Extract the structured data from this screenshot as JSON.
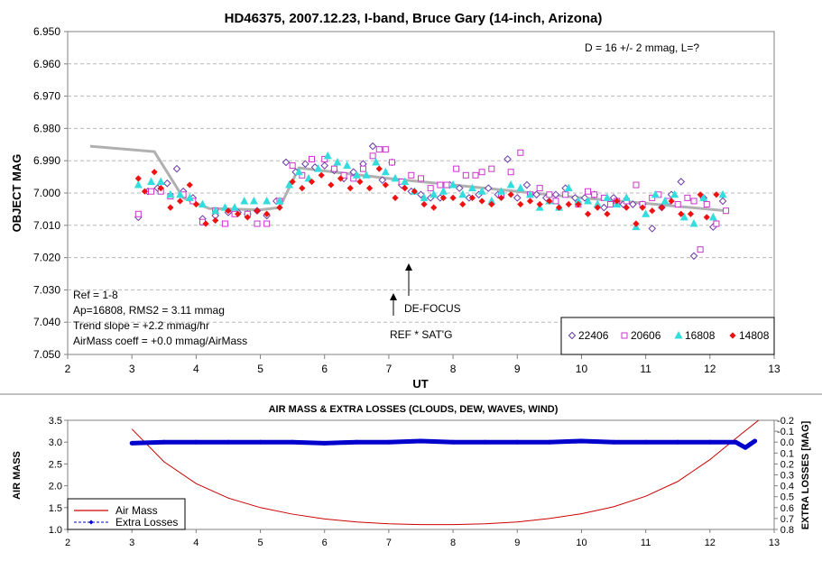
{
  "chart_data": [
    {
      "type": "scatter",
      "title": "HD46375, 2007.12.23, I-band, Bruce Gary (14-inch, Arizona)",
      "xlabel": "UT",
      "ylabel": "OBJECT MAG",
      "xlim": [
        2,
        13
      ],
      "ylim": [
        6.95,
        7.05
      ],
      "y_inverted": true,
      "x_ticks": [
        "2",
        "3",
        "4",
        "5",
        "6",
        "7",
        "8",
        "9",
        "10",
        "11",
        "12",
        "13"
      ],
      "y_ticks": [
        "6.950",
        "6.960",
        "6.970",
        "6.980",
        "6.990",
        "7.000",
        "7.010",
        "7.020",
        "7.030",
        "7.040",
        "7.050"
      ],
      "grid": "horizontal dashed",
      "legend": "bottom-right",
      "annotations": {
        "top_right": "D = 16 +/- 2 mmag, L=?",
        "stats": [
          "Ref = 1-8",
          "Ap=16808, RMS2 = 3.11 mmag",
          "Trend slope = +2.2 mmag/hr",
          "AirMass coeff = +0.0 mmag/AirMass"
        ],
        "defocus": "DE-FOCUS",
        "ref_sat": "REF * SAT'G"
      },
      "model_line": {
        "color": "#b0b0b0",
        "x": [
          2.35,
          3.35,
          3.8,
          4.2,
          5.0,
          5.3,
          5.6,
          7.0,
          8.0,
          9.0,
          10.0,
          11.0,
          12.25
        ],
        "y": [
          6.9855,
          6.9872,
          7.0015,
          7.0048,
          7.0052,
          7.0045,
          6.9922,
          6.9955,
          6.9975,
          6.9995,
          7.0015,
          7.0032,
          7.0055
        ]
      },
      "series": [
        {
          "name": "22406",
          "color": "#6a3aa8",
          "marker": "diamond-open",
          "x": [
            3.1,
            3.25,
            3.4,
            3.55,
            3.7,
            3.8,
            3.95,
            4.1,
            4.3,
            4.5,
            4.65,
            4.8,
            4.95,
            5.1,
            5.25,
            5.4,
            5.55,
            5.7,
            5.85,
            6.0,
            6.15,
            6.3,
            6.45,
            6.6,
            6.75,
            6.9,
            7.05,
            7.2,
            7.35,
            7.5,
            7.65,
            7.8,
            7.95,
            8.1,
            8.25,
            8.4,
            8.55,
            8.7,
            8.85,
            9.0,
            9.15,
            9.3,
            9.45,
            9.6,
            9.75,
            9.9,
            10.05,
            10.2,
            10.35,
            10.5,
            10.65,
            10.8,
            10.95,
            11.1,
            11.25,
            11.4,
            11.55,
            11.75,
            11.9,
            12.05,
            12.2
          ],
          "y": [
            7.0075,
            6.9995,
            6.9985,
            6.997,
            6.9925,
            6.9995,
            7.0015,
            7.008,
            7.007,
            7.006,
            7.006,
            7.0065,
            7.0055,
            7.007,
            7.0025,
            6.9905,
            6.9935,
            6.991,
            6.992,
            6.9915,
            6.993,
            6.9955,
            6.9935,
            6.991,
            6.9855,
            6.996,
            6.9905,
            6.9975,
            6.9995,
            7.0005,
            7.0015,
            7.0015,
            6.9975,
            6.9985,
            7.0015,
            7.0005,
            6.9985,
            7.0005,
            6.9895,
            7.0015,
            6.9975,
            7.0005,
            7.0015,
            7.0005,
            6.9985,
            7.0015,
            7.0015,
            7.0005,
            7.0045,
            7.0015,
            7.0035,
            7.0035,
            7.0035,
            7.011,
            7.0045,
            7.0005,
            6.9965,
            7.0195,
            7.0015,
            7.0105,
            7.0025
          ]
        },
        {
          "name": "20606",
          "color": "#cc33cc",
          "marker": "square-open",
          "x": [
            3.1,
            3.3,
            3.45,
            3.6,
            3.8,
            3.95,
            4.1,
            4.3,
            4.45,
            4.6,
            4.8,
            4.95,
            5.1,
            5.3,
            5.5,
            5.65,
            5.8,
            6.0,
            6.15,
            6.3,
            6.45,
            6.6,
            6.75,
            6.85,
            6.95,
            7.05,
            7.2,
            7.35,
            7.5,
            7.65,
            7.8,
            7.9,
            8.05,
            8.2,
            8.35,
            8.45,
            8.6,
            8.75,
            8.9,
            9.05,
            9.2,
            9.35,
            9.5,
            9.6,
            9.75,
            9.95,
            10.1,
            10.2,
            10.35,
            10.45,
            10.55,
            10.7,
            10.85,
            10.95,
            11.1,
            11.2,
            11.35,
            11.5,
            11.65,
            11.75,
            11.85,
            11.95,
            12.1,
            12.25
          ],
          "y": [
            7.0065,
            6.9995,
            6.9995,
            7.001,
            7.0005,
            7.0025,
            7.009,
            7.0055,
            7.0095,
            7.0065,
            7.0065,
            7.0095,
            7.0095,
            7.0025,
            6.9915,
            6.9945,
            6.9895,
            6.9895,
            6.9925,
            6.9945,
            6.9955,
            6.9925,
            6.9885,
            6.9865,
            6.9865,
            6.9905,
            6.9965,
            6.9945,
            6.9955,
            6.9985,
            6.9975,
            6.9975,
            6.9925,
            6.9945,
            6.9945,
            6.9935,
            6.9925,
            7.0005,
            6.9935,
            6.9875,
            7.0005,
            6.9985,
            7.0005,
            7.0025,
            7.0005,
            7.0035,
            6.9995,
            7.0005,
            7.0015,
            7.0035,
            7.0025,
            7.0025,
            6.9975,
            7.0035,
            7.0015,
            7.0005,
            7.0025,
            7.0035,
            7.0015,
            7.0025,
            7.0175,
            7.0035,
            7.0095,
            7.0055
          ]
        },
        {
          "name": "16808",
          "color": "#33dddd",
          "marker": "triangle",
          "x": [
            3.1,
            3.3,
            3.45,
            3.6,
            3.75,
            3.9,
            4.1,
            4.3,
            4.45,
            4.6,
            4.75,
            4.9,
            5.1,
            5.3,
            5.45,
            5.6,
            5.75,
            5.9,
            6.05,
            6.2,
            6.35,
            6.5,
            6.65,
            6.8,
            6.95,
            7.1,
            7.25,
            7.4,
            7.55,
            7.7,
            7.85,
            8.0,
            8.15,
            8.3,
            8.45,
            8.6,
            8.75,
            8.9,
            9.05,
            9.2,
            9.35,
            9.5,
            9.65,
            9.8,
            9.95,
            10.1,
            10.25,
            10.4,
            10.55,
            10.7,
            10.85,
            11.0,
            11.15,
            11.3,
            11.45,
            11.6,
            11.75,
            11.9,
            12.05,
            12.2
          ],
          "y": [
            6.9975,
            6.9965,
            6.9965,
            7.0005,
            7.0005,
            7.0015,
            7.0035,
            7.0055,
            7.0045,
            7.0045,
            7.0025,
            7.0025,
            7.0025,
            7.0025,
            6.9975,
            6.9935,
            6.9955,
            6.9925,
            6.9885,
            6.9905,
            6.9915,
            6.9945,
            6.9945,
            6.9905,
            6.9935,
            6.9955,
            6.9965,
            6.9995,
            7.0015,
            7.0005,
            6.9995,
            6.9975,
            7.0005,
            6.9985,
            6.9995,
            7.0025,
            6.9995,
            6.9975,
            6.9985,
            7.0005,
            7.0045,
            7.0025,
            7.0045,
            6.9985,
            7.0025,
            7.0025,
            7.0035,
            7.0015,
            7.0035,
            7.0015,
            7.0105,
            7.0065,
            7.0005,
            7.0025,
            7.0005,
            7.0075,
            7.0095,
            7.0015,
            7.0075,
            7.0005
          ]
        },
        {
          "name": "14808",
          "color": "#ee1111",
          "marker": "diamond",
          "x": [
            3.1,
            3.2,
            3.35,
            3.45,
            3.6,
            3.75,
            3.9,
            4.0,
            4.15,
            4.3,
            4.5,
            4.65,
            4.8,
            4.95,
            5.1,
            5.3,
            5.5,
            5.65,
            5.8,
            5.95,
            6.1,
            6.25,
            6.4,
            6.55,
            6.7,
            6.85,
            6.95,
            7.1,
            7.25,
            7.4,
            7.55,
            7.7,
            7.85,
            8.0,
            8.15,
            8.3,
            8.45,
            8.6,
            8.75,
            8.9,
            9.05,
            9.2,
            9.35,
            9.5,
            9.65,
            9.8,
            9.95,
            10.1,
            10.25,
            10.4,
            10.55,
            10.7,
            10.85,
            10.95,
            11.1,
            11.25,
            11.4,
            11.55,
            11.7,
            11.85,
            11.95,
            12.1
          ],
          "y": [
            6.9955,
            6.9995,
            6.9935,
            6.9985,
            7.0045,
            7.0025,
            6.9975,
            7.0035,
            7.0095,
            7.0085,
            7.0055,
            7.0065,
            7.0075,
            7.0055,
            7.0065,
            7.0045,
            6.9965,
            6.9985,
            6.9965,
            6.9945,
            6.9975,
            6.9955,
            6.9985,
            6.9965,
            6.9985,
            6.9925,
            6.9975,
            7.0015,
            6.9985,
            6.9995,
            7.0035,
            7.0045,
            7.0015,
            7.0015,
            7.0035,
            7.0015,
            7.0025,
            7.0035,
            7.0015,
            7.0005,
            7.0035,
            7.0025,
            7.0035,
            7.0025,
            7.0045,
            7.0035,
            7.0035,
            7.0065,
            7.0045,
            7.0065,
            7.0025,
            7.0045,
            7.0095,
            7.0045,
            7.0055,
            7.0045,
            7.0025,
            7.0065,
            7.0065,
            7.0005,
            7.0075,
            7.0005
          ]
        }
      ]
    },
    {
      "type": "line",
      "title": "AIR MASS & EXTRA LOSSES (CLOUDS, DEW, WAVES, WIND)",
      "xlabel": "",
      "ylabel": "AIR MASS",
      "y2label": "EXTRA LOSSES [MAG]",
      "xlim": [
        2,
        13
      ],
      "ylim": [
        1.0,
        3.5
      ],
      "y2lim": [
        -0.2,
        0.8
      ],
      "y2_inverted": true,
      "x_ticks": [
        "2",
        "3",
        "4",
        "5",
        "6",
        "7",
        "8",
        "9",
        "10",
        "11",
        "12",
        "13"
      ],
      "y_ticks": [
        "1.0",
        "1.5",
        "2.0",
        "2.5",
        "3.0",
        "3.5"
      ],
      "y2_ticks": [
        "-0.2",
        "-0.1",
        "0.0",
        "0.1",
        "0.2",
        "0.3",
        "0.4",
        "0.5",
        "0.6",
        "0.7",
        "0.8"
      ],
      "legend": "bottom-left",
      "series": [
        {
          "name": "Air Mass",
          "color": "#cc0000",
          "x": [
            3.0,
            3.5,
            4.0,
            4.5,
            5.0,
            5.5,
            6.0,
            6.5,
            7.0,
            7.5,
            8.0,
            8.5,
            9.0,
            9.5,
            10.0,
            10.5,
            11.0,
            11.5,
            12.0,
            12.5,
            12.8
          ],
          "y": [
            3.3,
            2.55,
            2.05,
            1.72,
            1.5,
            1.35,
            1.24,
            1.17,
            1.13,
            1.11,
            1.11,
            1.13,
            1.17,
            1.25,
            1.36,
            1.52,
            1.76,
            2.1,
            2.6,
            3.2,
            3.55
          ]
        },
        {
          "name": "Extra Losses",
          "color": "#0000cc",
          "x": [
            3.0,
            3.5,
            4.0,
            4.5,
            5.0,
            5.5,
            6.0,
            6.5,
            7.0,
            7.5,
            8.0,
            8.5,
            9.0,
            9.5,
            10.0,
            10.5,
            11.0,
            11.5,
            12.0,
            12.4,
            12.55,
            12.7
          ],
          "y": [
            0.01,
            0.0,
            0.0,
            0.0,
            0.0,
            0.0,
            0.01,
            0.0,
            0.0,
            -0.01,
            0.0,
            0.0,
            0.0,
            0.0,
            -0.01,
            0.0,
            0.0,
            0.0,
            0.0,
            0.0,
            0.05,
            -0.01
          ]
        }
      ]
    }
  ]
}
